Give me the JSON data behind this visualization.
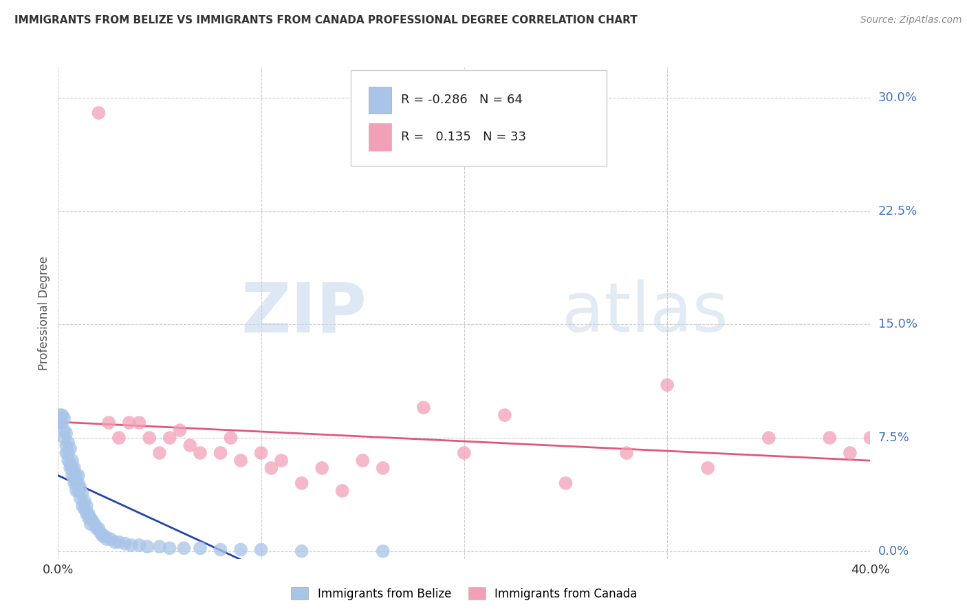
{
  "title": "IMMIGRANTS FROM BELIZE VS IMMIGRANTS FROM CANADA PROFESSIONAL DEGREE CORRELATION CHART",
  "source": "Source: ZipAtlas.com",
  "ylabel": "Professional Degree",
  "ytick_labels": [
    "0.0%",
    "7.5%",
    "15.0%",
    "22.5%",
    "30.0%"
  ],
  "ytick_values": [
    0.0,
    0.075,
    0.15,
    0.225,
    0.3
  ],
  "xlim": [
    0.0,
    0.4
  ],
  "ylim": [
    -0.005,
    0.32
  ],
  "legend_r_belize": "-0.286",
  "legend_n_belize": "64",
  "legend_r_canada": "0.135",
  "legend_n_canada": "33",
  "belize_color": "#a8c4e8",
  "canada_color": "#f2a0b8",
  "belize_line_color": "#2244aa",
  "canada_line_color": "#e05878",
  "watermark_zip": "ZIP",
  "watermark_atlas": "atlas",
  "belize_x": [
    0.0,
    0.001,
    0.002,
    0.002,
    0.003,
    0.003,
    0.003,
    0.004,
    0.004,
    0.004,
    0.005,
    0.005,
    0.005,
    0.006,
    0.006,
    0.006,
    0.007,
    0.007,
    0.007,
    0.008,
    0.008,
    0.008,
    0.009,
    0.009,
    0.009,
    0.01,
    0.01,
    0.01,
    0.011,
    0.011,
    0.012,
    0.012,
    0.013,
    0.013,
    0.014,
    0.014,
    0.015,
    0.015,
    0.016,
    0.016,
    0.017,
    0.018,
    0.019,
    0.02,
    0.021,
    0.022,
    0.023,
    0.024,
    0.026,
    0.028,
    0.03,
    0.033,
    0.036,
    0.04,
    0.044,
    0.05,
    0.055,
    0.062,
    0.07,
    0.08,
    0.09,
    0.1,
    0.12,
    0.16
  ],
  "belize_y": [
    0.085,
    0.09,
    0.09,
    0.085,
    0.088,
    0.08,
    0.075,
    0.07,
    0.065,
    0.078,
    0.065,
    0.072,
    0.06,
    0.058,
    0.068,
    0.055,
    0.055,
    0.06,
    0.05,
    0.05,
    0.055,
    0.045,
    0.05,
    0.045,
    0.04,
    0.045,
    0.05,
    0.04,
    0.042,
    0.035,
    0.038,
    0.03,
    0.033,
    0.028,
    0.03,
    0.025,
    0.025,
    0.022,
    0.022,
    0.018,
    0.02,
    0.018,
    0.015,
    0.015,
    0.012,
    0.01,
    0.01,
    0.008,
    0.008,
    0.006,
    0.006,
    0.005,
    0.004,
    0.004,
    0.003,
    0.003,
    0.002,
    0.002,
    0.002,
    0.001,
    0.001,
    0.001,
    0.0,
    0.0
  ],
  "canada_x": [
    0.02,
    0.025,
    0.03,
    0.035,
    0.04,
    0.045,
    0.05,
    0.055,
    0.06,
    0.065,
    0.07,
    0.08,
    0.085,
    0.09,
    0.1,
    0.105,
    0.11,
    0.12,
    0.13,
    0.14,
    0.15,
    0.16,
    0.18,
    0.2,
    0.22,
    0.25,
    0.28,
    0.3,
    0.32,
    0.35,
    0.38,
    0.39,
    0.4
  ],
  "canada_y": [
    0.29,
    0.085,
    0.075,
    0.085,
    0.085,
    0.075,
    0.065,
    0.075,
    0.08,
    0.07,
    0.065,
    0.065,
    0.075,
    0.06,
    0.065,
    0.055,
    0.06,
    0.045,
    0.055,
    0.04,
    0.06,
    0.055,
    0.095,
    0.065,
    0.09,
    0.045,
    0.065,
    0.11,
    0.055,
    0.075,
    0.075,
    0.065,
    0.075
  ]
}
